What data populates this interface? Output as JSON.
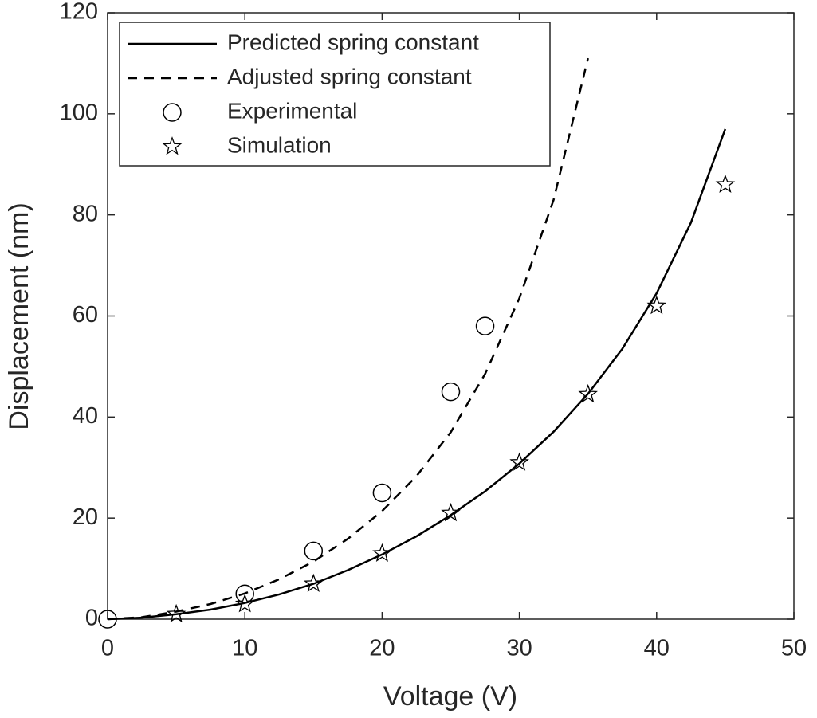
{
  "chart_data": {
    "type": "line",
    "x_label": "Voltage (V)",
    "y_label": "Displacement (nm)",
    "xlim": [
      0,
      50
    ],
    "xticks": [
      0,
      10,
      20,
      30,
      40,
      50
    ],
    "ylim": [
      0,
      120
    ],
    "yticks": [
      0,
      20,
      40,
      60,
      80,
      100,
      120
    ],
    "grid": false,
    "legend": "upper left",
    "series": [
      {
        "name": "Predicted spring constant",
        "color": "#000000",
        "linestyle": "solid",
        "marker": "none",
        "x": [
          0,
          2.5,
          5,
          7.5,
          10,
          12.5,
          15,
          17.5,
          20,
          22.5,
          25,
          27.5,
          30,
          32.5,
          35,
          37.5,
          40,
          42.5,
          45
        ],
        "values": [
          0,
          0.3,
          1,
          1.9,
          3.2,
          4.9,
          7,
          9.7,
          12.8,
          16.4,
          20.6,
          25.3,
          30.8,
          37.1,
          44.6,
          53.5,
          64.5,
          78.5,
          97
        ]
      },
      {
        "name": "Adjusted spring constant",
        "color": "#000000",
        "linestyle": "dashed",
        "marker": "none",
        "x": [
          0,
          2.5,
          5,
          7.5,
          10,
          12.5,
          15,
          17.5,
          20,
          22.5,
          25,
          27.5,
          30,
          32.5,
          35
        ],
        "values": [
          0,
          0.4,
          1.5,
          3,
          5.1,
          7.9,
          11.4,
          15.9,
          21.4,
          28.3,
          37,
          48.5,
          63.5,
          83,
          111
        ]
      },
      {
        "name": "Experimental",
        "color": "#000000",
        "linestyle": "none",
        "marker": "circle",
        "x": [
          0,
          10,
          15,
          20,
          25,
          27.5
        ],
        "values": [
          0,
          5,
          13.5,
          25,
          45,
          58
        ]
      },
      {
        "name": "Simulation",
        "color": "#000000",
        "linestyle": "none",
        "marker": "star",
        "x": [
          5,
          10,
          15,
          20,
          25,
          30,
          35,
          40,
          45
        ],
        "values": [
          1,
          3,
          7,
          13,
          21,
          31,
          44.5,
          62,
          86
        ]
      }
    ]
  }
}
